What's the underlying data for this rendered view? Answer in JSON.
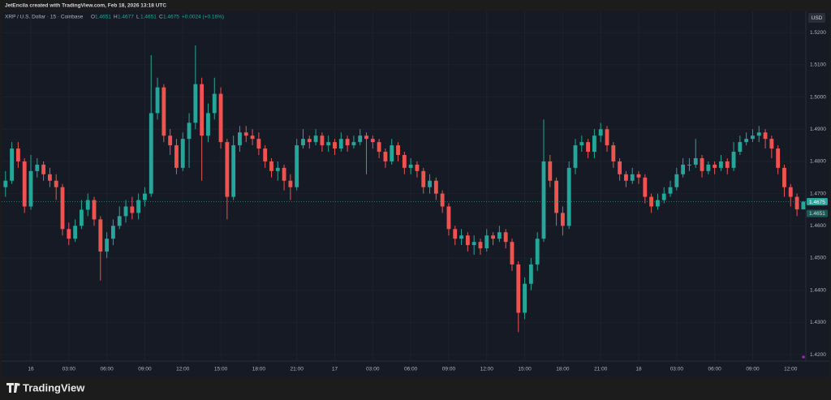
{
  "header": {
    "text": "JetEncila created with TradingView.com, Feb 18, 2026 13:18 UTC"
  },
  "footer": {
    "brand": "TradingView"
  },
  "chart_data": {
    "type": "candlestick",
    "legend": {
      "symbol": "XRP / U.S. Dollar · 15 · Coinbase",
      "ohlc_labels": [
        "O",
        "H",
        "L",
        "C"
      ],
      "change": "+0.0024 (+0.16%)"
    },
    "currency": "USD",
    "up_color": "#26a69a",
    "down_color": "#ef5350",
    "grid": true,
    "open": [
      1.472,
      1.474,
      1.484,
      1.48,
      1.466,
      1.477,
      1.479,
      1.476,
      1.474,
      1.472,
      1.459,
      1.456,
      1.46,
      1.465,
      1.468,
      1.462,
      1.452,
      1.456,
      1.46,
      1.463,
      1.466,
      1.464,
      1.468,
      1.47,
      1.495,
      1.503,
      1.488,
      1.485,
      1.478,
      1.487,
      1.492,
      1.504,
      1.488,
      1.495,
      1.501,
      1.486,
      1.469,
      1.485,
      1.489,
      1.488,
      1.487,
      1.484,
      1.48,
      1.477,
      1.478,
      1.474,
      1.472,
      1.485,
      1.487,
      1.486,
      1.488,
      1.485,
      1.486,
      1.484,
      1.487,
      1.485,
      1.486,
      1.488,
      1.487,
      1.486,
      1.483,
      1.48,
      1.485,
      1.482,
      1.478,
      1.479,
      1.477,
      1.472,
      1.474,
      1.47,
      1.466,
      1.459,
      1.456,
      1.457,
      1.454,
      1.455,
      1.453,
      1.457,
      1.456,
      1.458,
      1.455,
      1.448,
      1.433,
      1.442,
      1.448,
      1.456,
      1.48,
      1.474,
      1.464,
      1.46,
      1.478,
      1.485,
      1.486,
      1.483,
      1.488,
      1.49,
      1.485,
      1.48,
      1.476,
      1.474,
      1.476,
      1.475,
      1.469,
      1.466,
      1.468,
      1.47,
      1.472,
      1.476,
      1.479,
      1.479,
      1.481,
      1.477,
      1.479,
      1.478,
      1.48,
      1.478,
      1.483,
      1.486,
      1.487,
      1.488,
      1.489,
      1.487,
      1.484,
      1.478,
      1.472,
      1.469,
      1.4651
    ],
    "high": [
      1.477,
      1.486,
      1.486,
      1.481,
      1.482,
      1.481,
      1.48,
      1.478,
      1.476,
      1.473,
      1.461,
      1.462,
      1.468,
      1.47,
      1.469,
      1.463,
      1.458,
      1.462,
      1.466,
      1.468,
      1.469,
      1.47,
      1.472,
      1.513,
      1.506,
      1.504,
      1.49,
      1.487,
      1.489,
      1.495,
      1.516,
      1.506,
      1.498,
      1.506,
      1.503,
      1.487,
      1.488,
      1.491,
      1.491,
      1.49,
      1.489,
      1.485,
      1.481,
      1.48,
      1.479,
      1.476,
      1.487,
      1.49,
      1.488,
      1.49,
      1.489,
      1.488,
      1.487,
      1.489,
      1.488,
      1.488,
      1.49,
      1.489,
      1.488,
      1.487,
      1.484,
      1.487,
      1.486,
      1.483,
      1.481,
      1.48,
      1.478,
      1.476,
      1.475,
      1.471,
      1.467,
      1.46,
      1.459,
      1.458,
      1.457,
      1.456,
      1.459,
      1.458,
      1.46,
      1.459,
      1.456,
      1.449,
      1.444,
      1.45,
      1.458,
      1.493,
      1.482,
      1.475,
      1.466,
      1.48,
      1.487,
      1.488,
      1.487,
      1.49,
      1.492,
      1.491,
      1.486,
      1.481,
      1.477,
      1.478,
      1.477,
      1.476,
      1.47,
      1.47,
      1.472,
      1.474,
      1.478,
      1.481,
      1.481,
      1.487,
      1.482,
      1.48,
      1.48,
      1.482,
      1.481,
      1.486,
      1.488,
      1.489,
      1.49,
      1.491,
      1.49,
      1.488,
      1.485,
      1.479,
      1.473,
      1.47,
      1.4677
    ],
    "low": [
      1.469,
      1.473,
      1.478,
      1.464,
      1.465,
      1.475,
      1.474,
      1.472,
      1.468,
      1.457,
      1.454,
      1.455,
      1.459,
      1.463,
      1.46,
      1.443,
      1.45,
      1.454,
      1.459,
      1.461,
      1.462,
      1.462,
      1.466,
      1.469,
      1.493,
      1.486,
      1.482,
      1.476,
      1.477,
      1.478,
      1.49,
      1.474,
      1.486,
      1.493,
      1.484,
      1.462,
      1.468,
      1.483,
      1.486,
      1.485,
      1.482,
      1.478,
      1.475,
      1.474,
      1.471,
      1.468,
      1.471,
      1.484,
      1.484,
      1.485,
      1.483,
      1.483,
      1.482,
      1.483,
      1.483,
      1.484,
      1.485,
      1.476,
      1.484,
      1.481,
      1.478,
      1.479,
      1.48,
      1.476,
      1.476,
      1.475,
      1.47,
      1.47,
      1.468,
      1.464,
      1.457,
      1.454,
      1.454,
      1.452,
      1.451,
      1.451,
      1.452,
      1.454,
      1.455,
      1.453,
      1.446,
      1.427,
      1.431,
      1.44,
      1.446,
      1.455,
      1.472,
      1.46,
      1.457,
      1.459,
      1.476,
      1.483,
      1.481,
      1.481,
      1.486,
      1.483,
      1.478,
      1.474,
      1.472,
      1.473,
      1.473,
      1.467,
      1.464,
      1.465,
      1.467,
      1.469,
      1.471,
      1.475,
      1.477,
      1.478,
      1.475,
      1.476,
      1.476,
      1.477,
      1.476,
      1.477,
      1.482,
      1.485,
      1.486,
      1.486,
      1.484,
      1.481,
      1.476,
      1.469,
      1.466,
      1.463,
      1.4651
    ],
    "close": [
      1.474,
      1.484,
      1.48,
      1.466,
      1.477,
      1.479,
      1.476,
      1.474,
      1.472,
      1.459,
      1.456,
      1.46,
      1.465,
      1.468,
      1.462,
      1.452,
      1.456,
      1.46,
      1.463,
      1.466,
      1.464,
      1.468,
      1.47,
      1.495,
      1.503,
      1.488,
      1.485,
      1.478,
      1.487,
      1.492,
      1.504,
      1.488,
      1.495,
      1.501,
      1.486,
      1.469,
      1.485,
      1.489,
      1.488,
      1.487,
      1.484,
      1.48,
      1.477,
      1.478,
      1.474,
      1.472,
      1.485,
      1.487,
      1.486,
      1.488,
      1.485,
      1.486,
      1.484,
      1.487,
      1.485,
      1.486,
      1.488,
      1.487,
      1.486,
      1.483,
      1.48,
      1.485,
      1.482,
      1.478,
      1.479,
      1.477,
      1.472,
      1.474,
      1.47,
      1.466,
      1.459,
      1.456,
      1.457,
      1.454,
      1.455,
      1.453,
      1.457,
      1.456,
      1.458,
      1.455,
      1.448,
      1.433,
      1.442,
      1.448,
      1.456,
      1.48,
      1.474,
      1.464,
      1.46,
      1.478,
      1.485,
      1.486,
      1.483,
      1.488,
      1.49,
      1.485,
      1.48,
      1.476,
      1.474,
      1.476,
      1.475,
      1.469,
      1.466,
      1.468,
      1.47,
      1.472,
      1.476,
      1.479,
      1.479,
      1.481,
      1.477,
      1.479,
      1.478,
      1.48,
      1.478,
      1.483,
      1.486,
      1.487,
      1.488,
      1.489,
      1.487,
      1.484,
      1.478,
      1.472,
      1.469,
      1.4651,
      1.4675
    ],
    "xlim": [
      -0.87,
      126.4
    ],
    "xticks": [
      {
        "value": 4,
        "label": "16"
      },
      {
        "value": 10,
        "label": "03:00"
      },
      {
        "value": 16,
        "label": "06:00"
      },
      {
        "value": 22,
        "label": "09:00"
      },
      {
        "value": 28,
        "label": "12:00"
      },
      {
        "value": 34,
        "label": "15:00"
      },
      {
        "value": 40,
        "label": "18:00"
      },
      {
        "value": 46,
        "label": "21:00"
      },
      {
        "value": 52,
        "label": "17"
      },
      {
        "value": 58,
        "label": "03:00"
      },
      {
        "value": 64,
        "label": "06:00"
      },
      {
        "value": 70,
        "label": "09:00"
      },
      {
        "value": 76,
        "label": "12:00"
      },
      {
        "value": 82,
        "label": "15:00"
      },
      {
        "value": 88,
        "label": "18:00"
      },
      {
        "value": 94,
        "label": "21:00"
      },
      {
        "value": 100,
        "label": "18"
      },
      {
        "value": 106,
        "label": "03:00"
      },
      {
        "value": 112,
        "label": "06:00"
      },
      {
        "value": 118,
        "label": "09:00"
      },
      {
        "value": 124,
        "label": "12:00"
      }
    ],
    "ylim": [
      1.418,
      1.5266
    ],
    "yticks": [
      {
        "value": 1.42,
        "label": "1.4200"
      },
      {
        "value": 1.43,
        "label": "1.4300"
      },
      {
        "value": 1.44,
        "label": "1.4400"
      },
      {
        "value": 1.45,
        "label": "1.4500"
      },
      {
        "value": 1.46,
        "label": "1.4600"
      },
      {
        "value": 1.47,
        "label": "1.4700"
      },
      {
        "value": 1.48,
        "label": "1.4800"
      },
      {
        "value": 1.49,
        "label": "1.4900"
      },
      {
        "value": 1.5,
        "label": "1.5000"
      },
      {
        "value": 1.51,
        "label": "1.5100"
      },
      {
        "value": 1.52,
        "label": "1.5200"
      }
    ]
  }
}
